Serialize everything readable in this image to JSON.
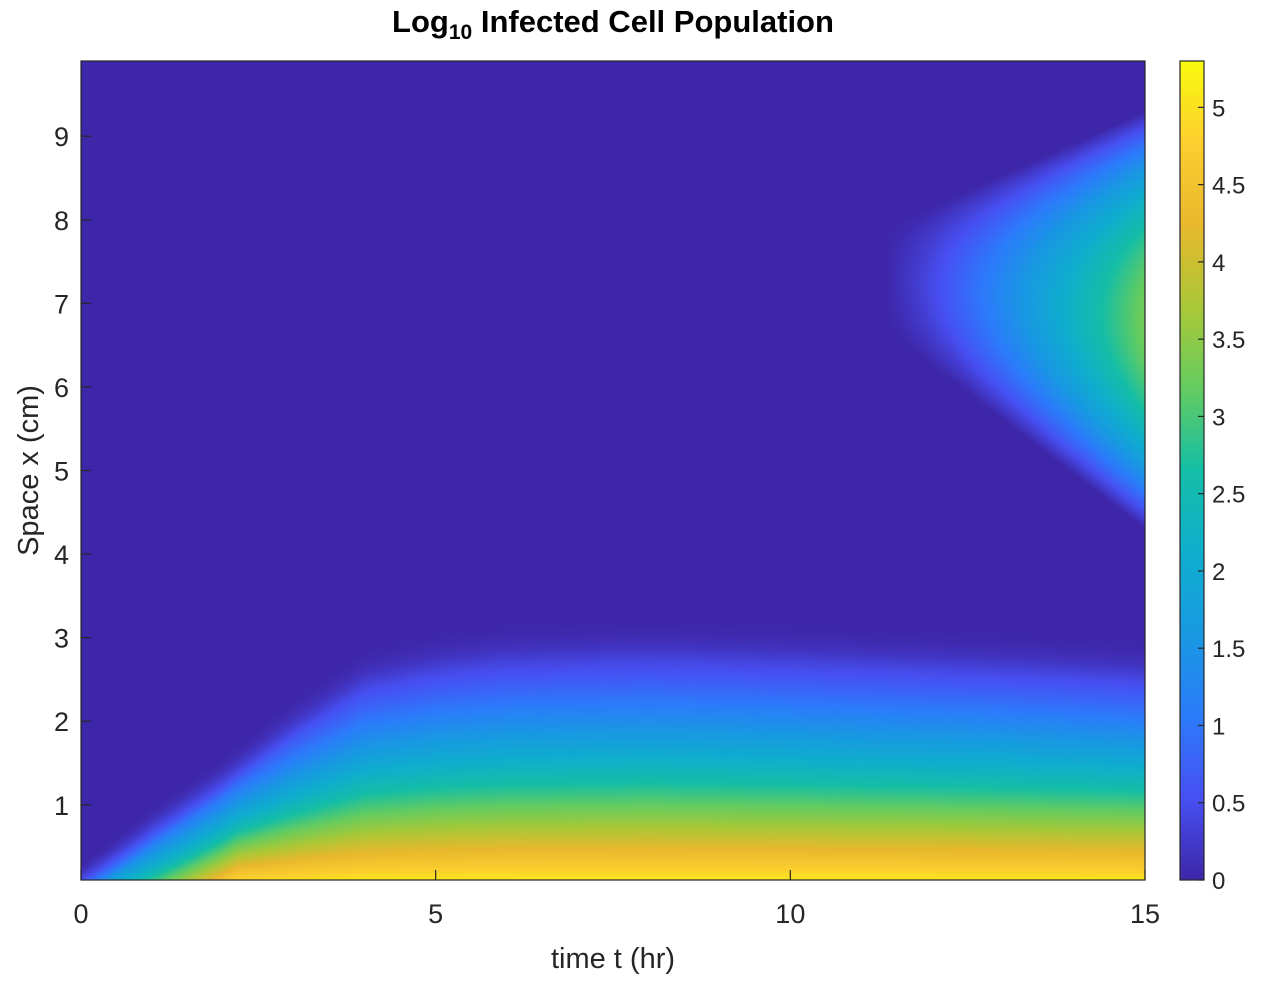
{
  "chart_data": {
    "type": "heatmap",
    "title": {
      "main": "Log",
      "sub": "10",
      "rest": "Infected Cell Population"
    },
    "xlabel": "time t (hr)",
    "ylabel": "Space x (cm)",
    "xlim": [
      0,
      15
    ],
    "ylim": [
      0.1,
      9.9
    ],
    "x_ticks": [
      0,
      5,
      10,
      15
    ],
    "x_tick_labels": [
      "0",
      "5",
      "10",
      "15"
    ],
    "y_ticks": [
      1,
      2,
      3,
      4,
      5,
      6,
      7,
      8,
      9
    ],
    "y_tick_labels": [
      "1",
      "2",
      "3",
      "4",
      "5",
      "6",
      "7",
      "8",
      "9"
    ],
    "colorbar": {
      "range": [
        0,
        5.3
      ],
      "ticks": [
        0,
        0.5,
        1,
        1.5,
        2,
        2.5,
        3,
        3.5,
        4,
        4.5,
        5
      ],
      "tick_labels": [
        "0",
        "0.5",
        "1",
        "1.5",
        "2",
        "2.5",
        "3",
        "3.5",
        "4",
        "4.5",
        "5"
      ],
      "colormap": "parula"
    },
    "field_features": {
      "lower_front": {
        "plateau_height_cm": [
          0.3,
          1.0,
          1.6,
          2.3,
          2.9,
          3.1,
          3.2,
          3.25,
          3.2,
          3.1,
          3.0
        ],
        "plateau_times_hr": [
          0,
          1,
          2,
          3,
          4,
          5,
          6,
          8,
          10,
          13,
          15
        ],
        "max_value": 5.3
      },
      "upper_blob": {
        "center_x_cm": 6.8,
        "onset_time_hr": 11.3,
        "max_value_at_t15": 3.3
      }
    }
  }
}
